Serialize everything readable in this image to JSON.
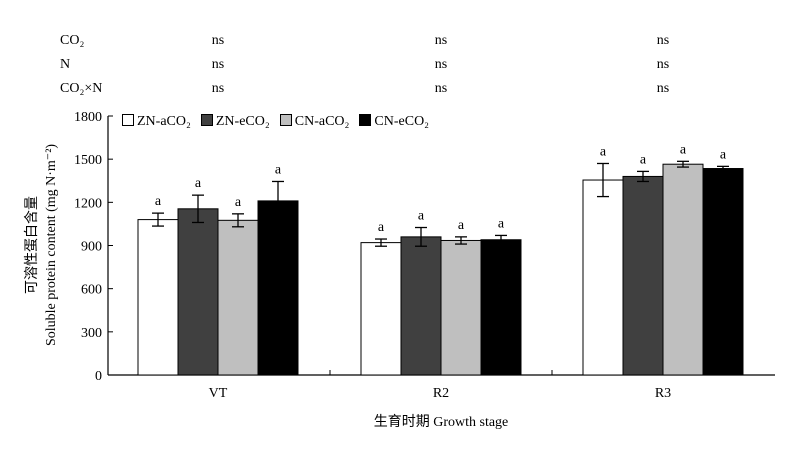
{
  "stats": {
    "rows": [
      {
        "label": "CO₂",
        "values": [
          "ns",
          "ns",
          "ns"
        ]
      },
      {
        "label": "N",
        "values": [
          "ns",
          "ns",
          "ns"
        ]
      },
      {
        "label": "CO₂×N",
        "values": [
          "ns",
          "ns",
          "ns"
        ]
      }
    ]
  },
  "chart_data": {
    "type": "bar",
    "categories": [
      "VT",
      "R2",
      "R3"
    ],
    "series": [
      {
        "name": "ZN-aCO₂",
        "color": "#ffffff",
        "values": [
          1080,
          920,
          1355
        ],
        "errors": [
          45,
          25,
          115
        ],
        "labels": [
          "a",
          "a",
          "a"
        ]
      },
      {
        "name": "ZN-eCO₂",
        "color": "#404040",
        "values": [
          1155,
          960,
          1380
        ],
        "errors": [
          95,
          65,
          35
        ],
        "labels": [
          "a",
          "a",
          "a"
        ]
      },
      {
        "name": "CN-aCO₂",
        "color": "#bfbfbf",
        "values": [
          1075,
          935,
          1465
        ],
        "errors": [
          45,
          25,
          20
        ],
        "labels": [
          "a",
          "a",
          "a"
        ]
      },
      {
        "name": "CN-eCO₂",
        "color": "#000000",
        "values": [
          1210,
          940,
          1435
        ],
        "errors": [
          135,
          30,
          15
        ],
        "labels": [
          "a",
          "a",
          "a"
        ]
      }
    ],
    "ylim": [
      0,
      1800
    ],
    "yticks": [
      0,
      300,
      600,
      900,
      1200,
      1500,
      1800
    ],
    "ylabel_cn": "可溶性蛋白含量",
    "ylabel_en": "Soluble protein content (mg N·m⁻²)",
    "xlabel": "生育时期 Growth stage",
    "legend_position": "top-left",
    "grid": false
  }
}
